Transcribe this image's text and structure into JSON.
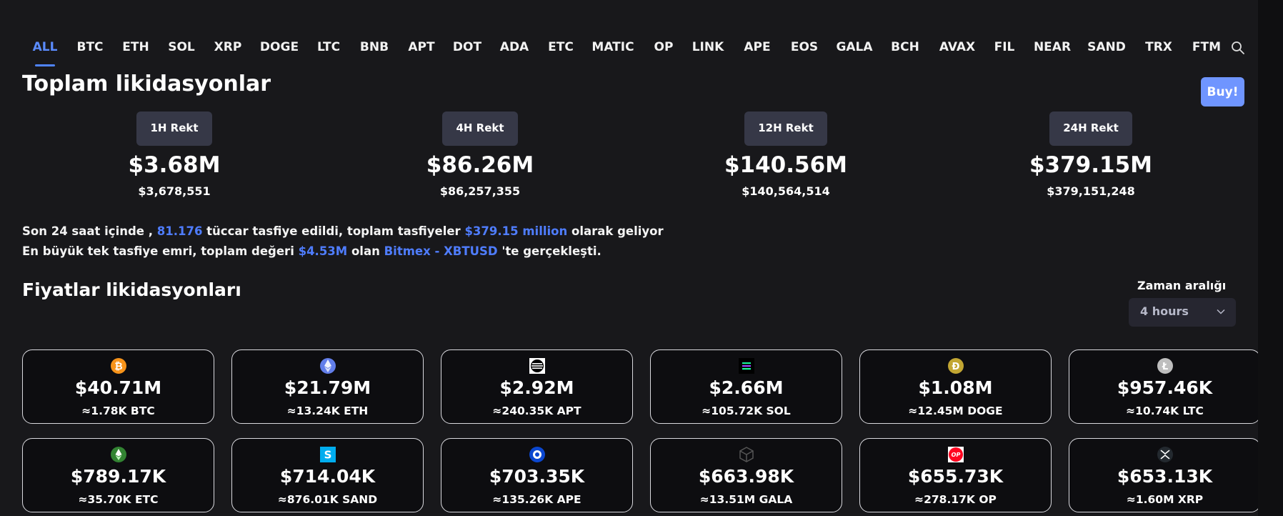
{
  "tabs": [
    "ALL",
    "BTC",
    "ETH",
    "SOL",
    "XRP",
    "DOGE",
    "LTC",
    "BNB",
    "APT",
    "DOT",
    "ADA",
    "ETC",
    "MATIC",
    "OP",
    "LINK",
    "APE",
    "EOS",
    "GALA",
    "BCH",
    "AVAX",
    "FIL",
    "NEAR",
    "SAND",
    "TRX",
    "FTM"
  ],
  "active_tab": "ALL",
  "title": "Toplam likidasyonlar",
  "buy_label": "Buy!",
  "rekt": [
    {
      "label": "1H Rekt",
      "big": "$3.68M",
      "exact": "$3,678,551"
    },
    {
      "label": "4H Rekt",
      "big": "$86.26M",
      "exact": "$86,257,355"
    },
    {
      "label": "12H Rekt",
      "big": "$140.56M",
      "exact": "$140,564,514"
    },
    {
      "label": "24H Rekt",
      "big": "$379.15M",
      "exact": "$379,151,248"
    }
  ],
  "summary": {
    "l1_a": "Son 24 saat içinde , ",
    "l1_traders": "81.176",
    "l1_b": " tüccar tasfiye edildi, toplam tasfiyeler ",
    "l1_total": "$379.15 million",
    "l1_c": " olarak geliyor",
    "l2_a": "En büyük tek tasfiye emri, toplam değeri ",
    "l2_amount": "$4.53M",
    "l2_b": " olan ",
    "l2_exchange": "Bitmex - XBTUSD",
    "l2_c": " 'te gerçekleşti."
  },
  "prices_title": "Fiyatlar likidasyonları",
  "range": {
    "label": "Zaman aralığı",
    "value": "4 hours"
  },
  "cards": [
    {
      "icon": "btc-icon",
      "usd": "$40.71M",
      "coin": "≈1.78K BTC"
    },
    {
      "icon": "eth-icon",
      "usd": "$21.79M",
      "coin": "≈13.24K ETH"
    },
    {
      "icon": "apt-icon",
      "usd": "$2.92M",
      "coin": "≈240.35K APT"
    },
    {
      "icon": "sol-icon",
      "usd": "$2.66M",
      "coin": "≈105.72K SOL"
    },
    {
      "icon": "doge-icon",
      "usd": "$1.08M",
      "coin": "≈12.45M DOGE"
    },
    {
      "icon": "ltc-icon",
      "usd": "$957.46K",
      "coin": "≈10.74K LTC"
    },
    {
      "icon": "etc-icon",
      "usd": "$789.17K",
      "coin": "≈35.70K ETC"
    },
    {
      "icon": "sand-icon",
      "usd": "$714.04K",
      "coin": "≈876.01K SAND"
    },
    {
      "icon": "ape-icon",
      "usd": "$703.35K",
      "coin": "≈135.26K APE"
    },
    {
      "icon": "gala-icon",
      "usd": "$663.98K",
      "coin": "≈13.51M GALA"
    },
    {
      "icon": "op-icon",
      "usd": "$655.73K",
      "coin": "≈278.17K OP"
    },
    {
      "icon": "xrp-icon",
      "usd": "$653.13K",
      "coin": "≈1.60M XRP"
    }
  ],
  "colors": {
    "accent": "#4f7dff",
    "buy": "#6f95ff",
    "badge": "#363847",
    "panel": "#18181b"
  }
}
